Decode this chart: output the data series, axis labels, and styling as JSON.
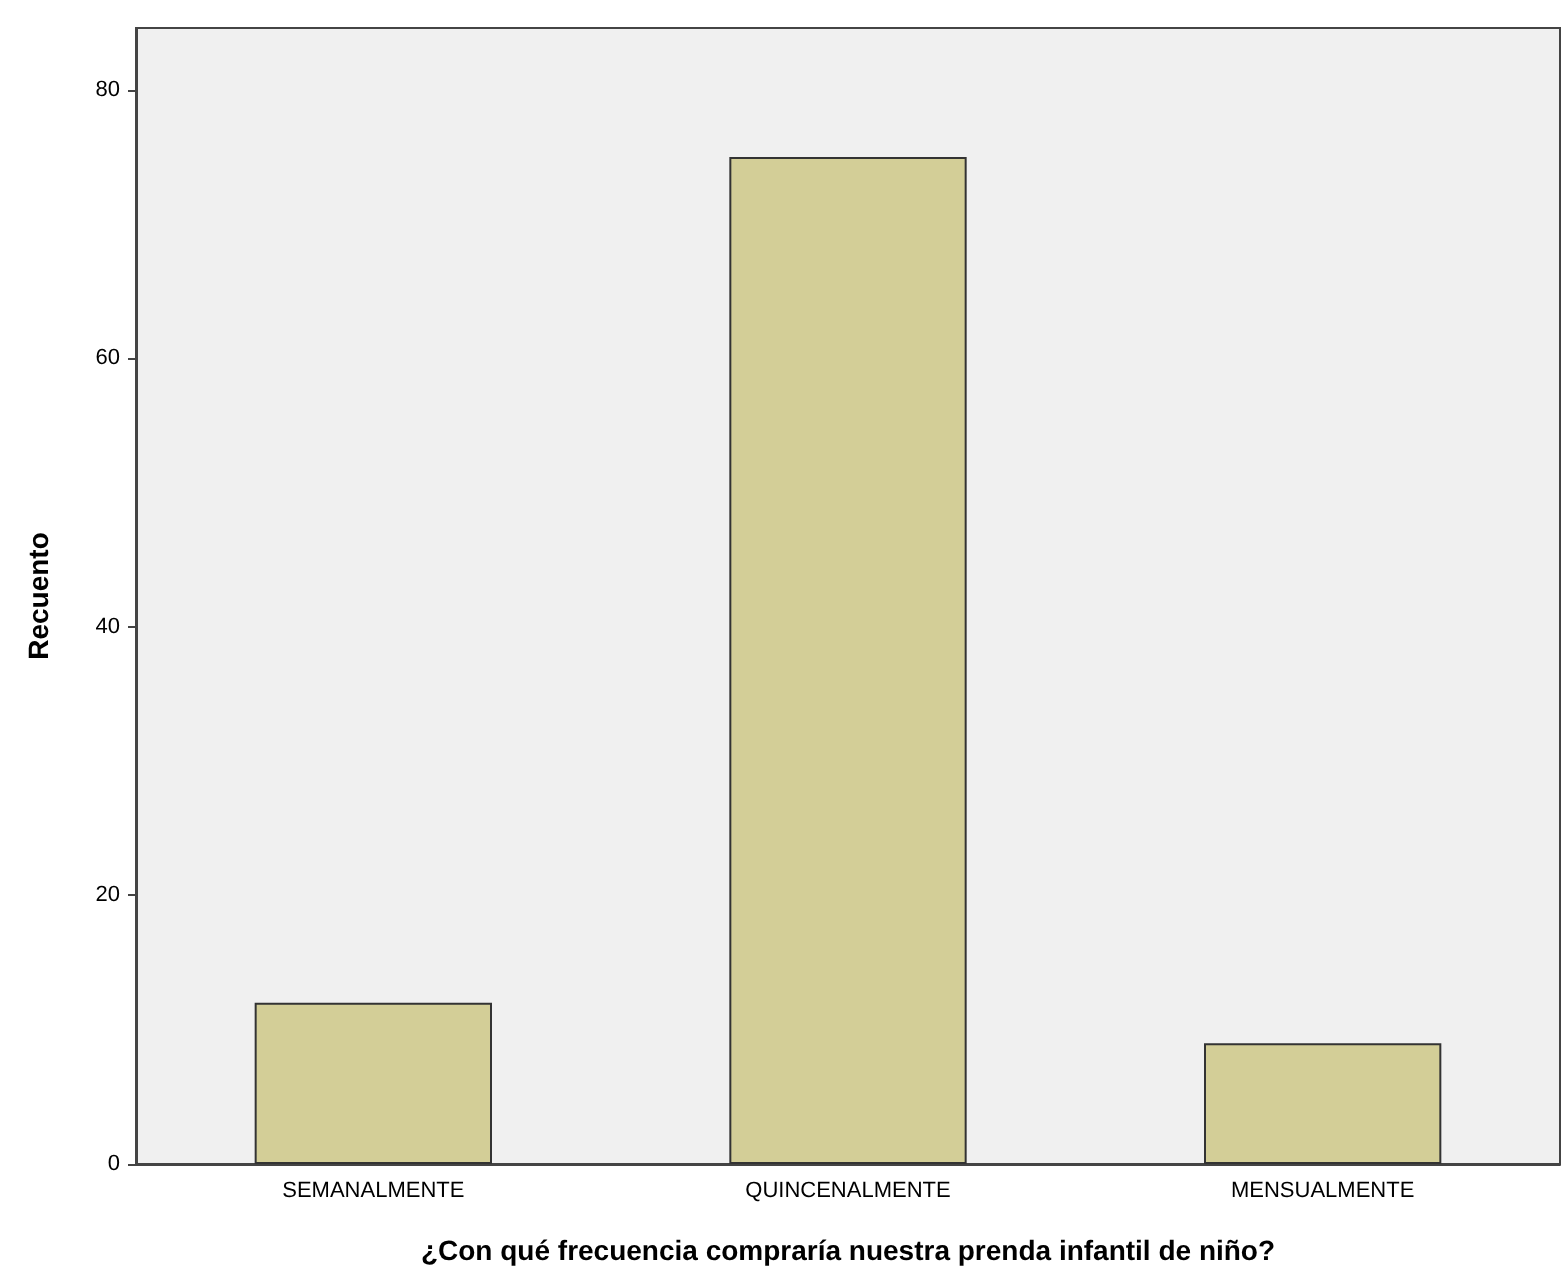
{
  "chart_data": {
    "type": "bar",
    "xlabel": "¿Con qué frecuencia compraría nuestra prenda infantil de niño?",
    "ylabel": "Recuento",
    "categories": [
      "SEMANALMENTE",
      "QUINCENALMENTE",
      "MENSUALMENTE"
    ],
    "values": [
      12,
      75,
      9
    ],
    "color": "#d3ce97",
    "ylim": [
      0,
      84.6
    ],
    "yticks": [
      0,
      20,
      40,
      60,
      80
    ],
    "grid": false
  }
}
